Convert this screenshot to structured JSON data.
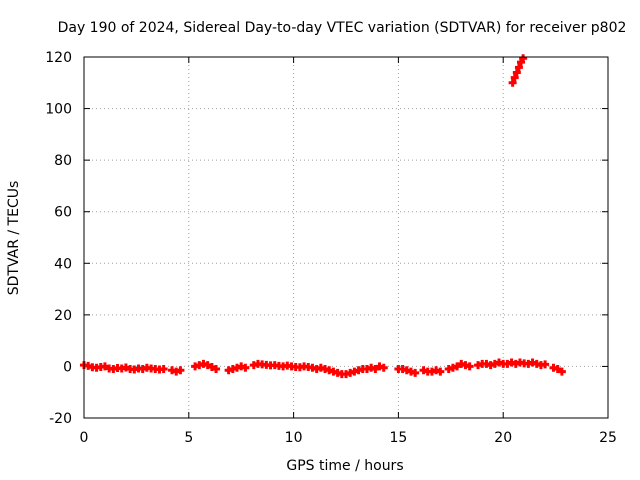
{
  "chart_data": {
    "type": "scatter",
    "title": "Day 190 of 2024, Sidereal Day-to-day VTEC variation (SDTVAR) for receiver p802",
    "xlabel": "GPS time / hours",
    "ylabel": "SDTVAR / TECUs",
    "xlim": [
      0,
      25
    ],
    "ylim": [
      -20,
      120
    ],
    "x_ticks": [
      0,
      5,
      10,
      15,
      20,
      25
    ],
    "y_ticks": [
      -20,
      0,
      20,
      40,
      60,
      80,
      100,
      120
    ],
    "grid": true,
    "marker": "+",
    "color": "#ff0000",
    "series": [
      {
        "name": "SDTVAR",
        "x": [
          0.0,
          0.2,
          0.4,
          0.6,
          0.8,
          1.0,
          1.2,
          1.4,
          1.6,
          1.8,
          2.0,
          2.2,
          2.4,
          2.6,
          2.8,
          3.0,
          3.2,
          3.4,
          3.6,
          3.8,
          4.2,
          4.4,
          4.6,
          5.3,
          5.5,
          5.7,
          5.9,
          6.1,
          6.3,
          6.9,
          7.1,
          7.3,
          7.5,
          7.7,
          8.1,
          8.3,
          8.5,
          8.7,
          8.9,
          9.1,
          9.3,
          9.5,
          9.7,
          9.9,
          10.1,
          10.3,
          10.5,
          10.7,
          10.9,
          11.1,
          11.3,
          11.5,
          11.7,
          11.9,
          12.1,
          12.3,
          12.5,
          12.7,
          12.9,
          13.1,
          13.3,
          13.5,
          13.7,
          13.9,
          14.1,
          14.3,
          15.0,
          15.2,
          15.4,
          15.6,
          15.8,
          16.2,
          16.4,
          16.6,
          16.8,
          17.0,
          17.4,
          17.6,
          17.8,
          18.0,
          18.2,
          18.4,
          18.8,
          19.0,
          19.2,
          19.4,
          19.6,
          19.8,
          20.0,
          20.2,
          20.4,
          20.6,
          20.8,
          21.0,
          21.2,
          21.4,
          21.6,
          21.8,
          22.0,
          22.4,
          22.6,
          22.8,
          20.45,
          20.55,
          20.65,
          20.75,
          20.85,
          20.95
        ],
        "y": [
          0.5,
          0.2,
          -0.3,
          -0.5,
          -0.2,
          0.0,
          -0.8,
          -1.0,
          -0.6,
          -0.8,
          -0.4,
          -1.0,
          -1.2,
          -0.8,
          -1.0,
          -0.5,
          -0.8,
          -1.0,
          -1.2,
          -1.0,
          -1.5,
          -2.0,
          -1.5,
          0.0,
          0.5,
          1.0,
          0.5,
          -0.2,
          -1.0,
          -1.5,
          -1.0,
          -0.5,
          0.0,
          -0.5,
          0.5,
          1.0,
          0.8,
          0.6,
          0.4,
          0.5,
          0.2,
          0.0,
          0.3,
          0.0,
          -0.2,
          -0.3,
          0.0,
          -0.2,
          -0.5,
          -1.0,
          -0.5,
          -1.0,
          -1.5,
          -2.0,
          -2.5,
          -3.0,
          -3.0,
          -2.5,
          -2.0,
          -1.5,
          -1.0,
          -1.0,
          -0.5,
          -1.0,
          0.0,
          -0.5,
          -1.0,
          -1.0,
          -1.5,
          -2.0,
          -2.5,
          -1.5,
          -2.0,
          -2.0,
          -1.5,
          -2.0,
          -1.0,
          -0.5,
          0.0,
          1.0,
          0.5,
          0.0,
          0.5,
          1.0,
          1.0,
          0.5,
          1.0,
          1.5,
          1.0,
          1.0,
          1.5,
          1.0,
          1.5,
          1.2,
          1.0,
          1.5,
          1.0,
          0.5,
          0.8,
          -0.5,
          -1.0,
          -2.0,
          110.0,
          112.0,
          114.0,
          116.0,
          118.0,
          119.5
        ]
      }
    ]
  }
}
